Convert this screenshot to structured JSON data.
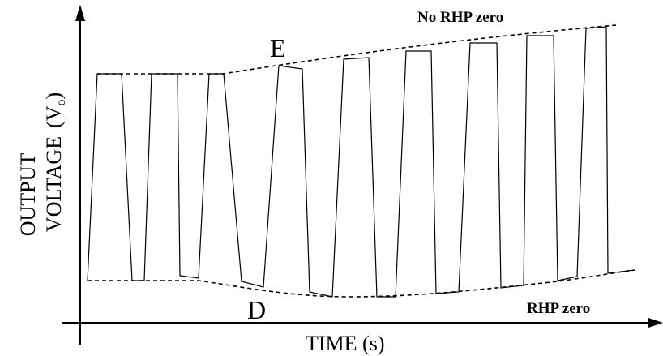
{
  "figure": {
    "x_axis_label": "TIME (s)",
    "y_axis_label_line1": "OUTPUT",
    "y_axis_label_line2": "VOLTAGE",
    "y_axis_symbol_main": "(V",
    "y_axis_symbol_sub": "o",
    "y_axis_symbol_close": ")",
    "upper_envelope_label": "No RHP zero",
    "lower_envelope_label": "RHP zero",
    "point_upper_label": "E",
    "point_lower_label": "D",
    "line_color": "#000000",
    "background_color": "#ffffff"
  }
}
